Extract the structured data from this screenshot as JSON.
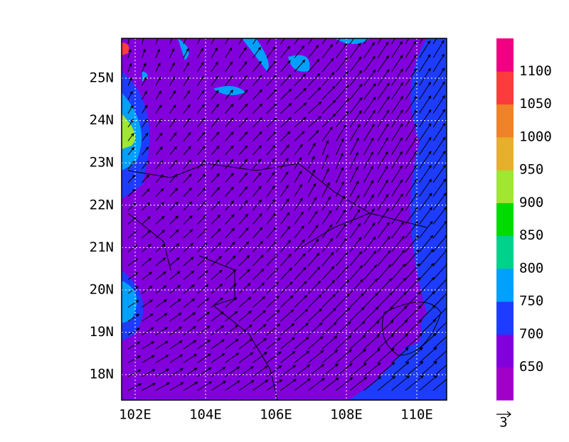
{
  "map": {
    "lat_labels": [
      "25N",
      "24N",
      "23N",
      "22N",
      "21N",
      "20N",
      "19N",
      "18N"
    ],
    "lon_labels": [
      "102E",
      "104E",
      "106E",
      "108E",
      "110E"
    ],
    "colorbar": {
      "labels": [
        "650",
        "700",
        "750",
        "800",
        "850",
        "900",
        "950",
        "1000",
        "1050",
        "1100"
      ],
      "colors": [
        "#a000c8",
        "#8200dc",
        "#1e3cff",
        "#00a0ff",
        "#00d28c",
        "#00dc00",
        "#a0e632",
        "#e6af2d",
        "#f08228",
        "#fa3c3c",
        "#f00082"
      ]
    },
    "vector_reference": "3"
  }
}
